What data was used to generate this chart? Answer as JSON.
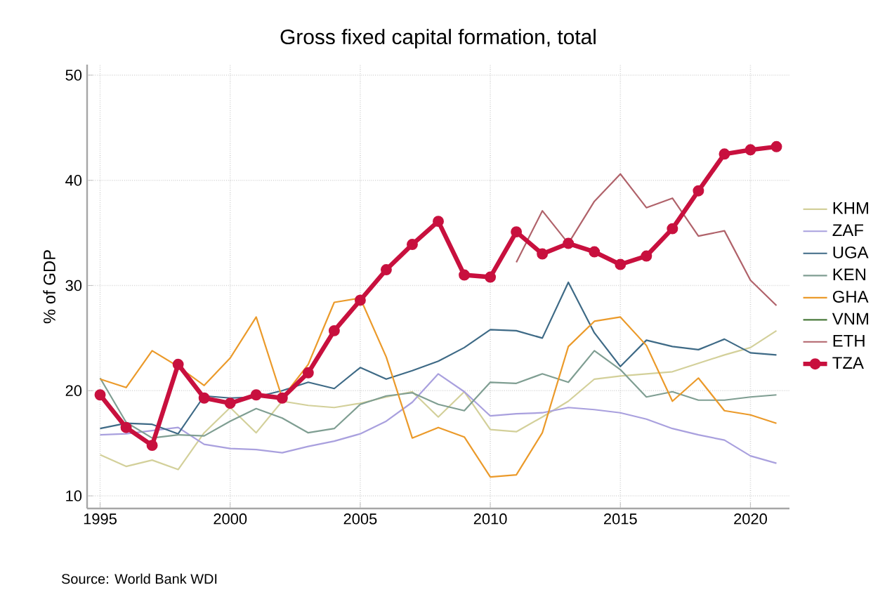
{
  "chart_data": {
    "type": "line",
    "title": "Gross fixed capital formation, total",
    "ylabel": "% of GDP",
    "annotations": [
      "Source: World Bank WDI"
    ],
    "x": [
      1995,
      1996,
      1997,
      1998,
      1999,
      2000,
      2001,
      2002,
      2003,
      2004,
      2005,
      2006,
      2007,
      2008,
      2009,
      2010,
      2011,
      2012,
      2013,
      2014,
      2015,
      2016,
      2017,
      2018,
      2019,
      2020,
      2021
    ],
    "xlim": [
      1994.5,
      2021.5
    ],
    "xticks": [
      1995,
      2000,
      2005,
      2010,
      2015,
      2020
    ],
    "ylim": [
      8.8,
      51
    ],
    "yticks": [
      10,
      20,
      30,
      40,
      50
    ],
    "grid": true,
    "legend": "right",
    "line_style": "solid",
    "series": [
      {
        "name": "KHM",
        "color": "#d3d09a",
        "values": [
          13.9,
          12.8,
          13.4,
          12.5,
          16.0,
          18.4,
          16.0,
          19.0,
          18.6,
          18.4,
          18.8,
          19.4,
          19.9,
          17.5,
          19.9,
          16.3,
          16.1,
          17.5,
          19.0,
          21.1,
          21.4,
          21.6,
          21.8,
          22.6,
          23.4,
          24.1,
          25.7
        ]
      },
      {
        "name": "ZAF",
        "color": "#a9a0de",
        "values": [
          15.8,
          15.9,
          16.2,
          16.5,
          14.9,
          14.5,
          14.4,
          14.1,
          14.7,
          15.2,
          15.9,
          17.1,
          18.9,
          21.6,
          19.9,
          17.6,
          17.8,
          17.9,
          18.4,
          18.2,
          17.9,
          17.3,
          16.4,
          15.8,
          15.3,
          13.8,
          13.1
        ]
      },
      {
        "name": "UGA",
        "color": "#3e6a86",
        "values": [
          16.4,
          16.9,
          16.8,
          15.9,
          19.5,
          19.3,
          19.4,
          20.0,
          20.8,
          20.2,
          22.2,
          21.1,
          21.9,
          22.8,
          24.1,
          25.8,
          25.7,
          25.0,
          30.3,
          25.5,
          22.3,
          24.8,
          24.2,
          23.9,
          24.9,
          23.6,
          23.4
        ]
      },
      {
        "name": "KEN",
        "color": "#7f9e92",
        "values": [
          21.2,
          17.0,
          15.5,
          15.8,
          15.7,
          17.1,
          18.3,
          17.4,
          16.0,
          16.4,
          18.7,
          19.5,
          19.8,
          18.7,
          18.1,
          20.8,
          20.7,
          21.6,
          20.8,
          23.8,
          22.0,
          19.4,
          19.9,
          19.1,
          19.1,
          19.4,
          19.6
        ]
      },
      {
        "name": "GHA",
        "color": "#eb9a2a",
        "values": [
          21.1,
          20.3,
          23.8,
          22.3,
          20.5,
          23.1,
          27.0,
          19.3,
          22.5,
          28.4,
          28.8,
          23.2,
          15.5,
          16.5,
          15.6,
          11.8,
          12.0,
          16.0,
          24.2,
          26.6,
          27.0,
          24.3,
          19.0,
          21.2,
          18.1,
          17.7,
          16.9
        ]
      },
      {
        "name": "VNM",
        "color": "#4a7a3c",
        "values": [
          null,
          null,
          null,
          null,
          null,
          null,
          null,
          null,
          null,
          null,
          null,
          null,
          null,
          null,
          null,
          null,
          null,
          null,
          null,
          null,
          null,
          null,
          null,
          null,
          null,
          null,
          null
        ]
      },
      {
        "name": "ETH",
        "color": "#b0626a",
        "values": [
          null,
          null,
          null,
          null,
          null,
          null,
          null,
          null,
          null,
          null,
          null,
          null,
          null,
          null,
          null,
          null,
          32.2,
          37.1,
          34.0,
          38.0,
          40.6,
          37.4,
          38.3,
          34.7,
          35.2,
          30.5,
          28.1
        ]
      },
      {
        "name": "TZA",
        "color": "#c8103e",
        "marker": "circle",
        "values": [
          19.6,
          16.5,
          14.8,
          22.5,
          19.3,
          18.8,
          19.6,
          19.3,
          21.7,
          25.7,
          28.6,
          31.5,
          33.9,
          36.1,
          31.0,
          30.8,
          35.1,
          33.0,
          34.0,
          33.2,
          32.0,
          32.8,
          35.4,
          39.0,
          42.5,
          42.9,
          43.2
        ]
      }
    ]
  }
}
